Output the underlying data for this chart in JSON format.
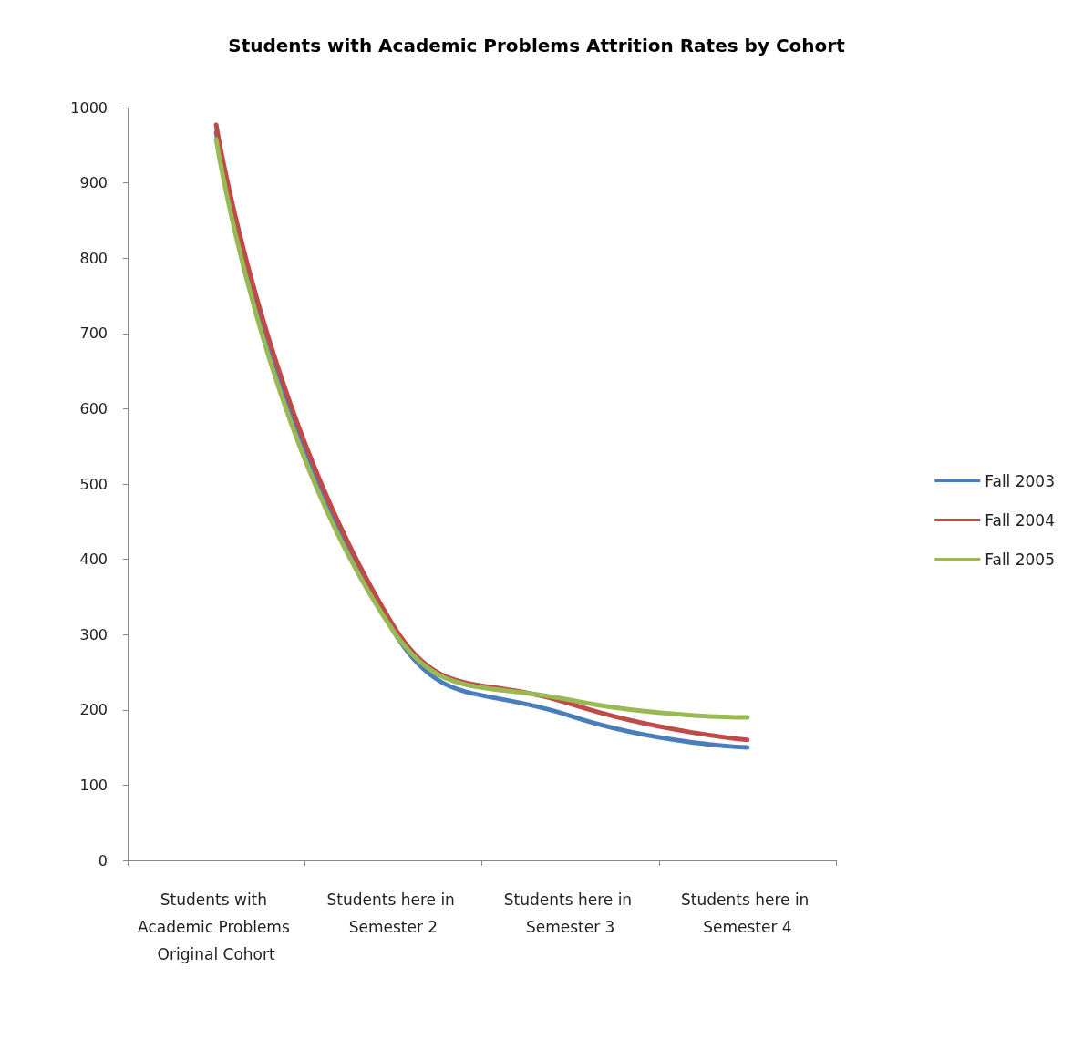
{
  "chart_data": {
    "type": "line",
    "title": "Students with Academic Problems Attrition Rates by Cohort",
    "categories": [
      "Students with Academic Problems Original Cohort",
      "Students here in Semester 2",
      "Students here in Semester 3",
      "Students here in Semester 4"
    ],
    "series": [
      {
        "name": "Fall 2003",
        "color": "#4a7ebb",
        "values": [
          967,
          305,
          192,
          150
        ]
      },
      {
        "name": "Fall 2004",
        "color": "#be4b48",
        "values": [
          977,
          312,
          208,
          160
        ]
      },
      {
        "name": "Fall 2005",
        "color": "#98b954",
        "values": [
          958,
          305,
          213,
          190
        ]
      }
    ],
    "ylim": [
      0,
      1000
    ],
    "yticks": [
      0,
      100,
      200,
      300,
      400,
      500,
      600,
      700,
      800,
      900,
      1000
    ],
    "grid": false,
    "legend": "right",
    "marker": "none",
    "line_style": "solid"
  }
}
